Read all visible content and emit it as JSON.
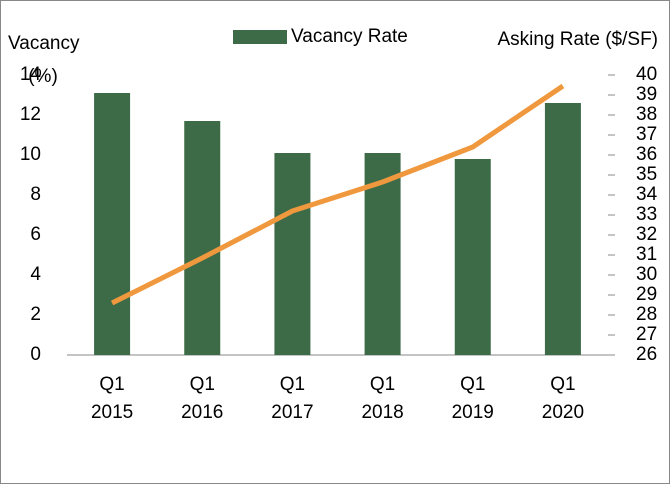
{
  "chart_data": {
    "type": "bar",
    "ylabel": "Vacancy (%)",
    "y2label": "Asking Rate ($/SF)",
    "categories": [
      "Q1 2015",
      "Q1 2016",
      "Q1 2017",
      "Q1 2018",
      "Q1 2019",
      "Q1 2020"
    ],
    "series": [
      {
        "name": "Vacancy Rate",
        "type": "bar",
        "color": "#3d6b47",
        "values": [
          13.1,
          11.7,
          10.1,
          10.1,
          9.8,
          12.6
        ]
      },
      {
        "type": "line",
        "axis": "y2",
        "color": "#f0983e",
        "values": [
          28.6,
          30.85,
          33.2,
          34.65,
          36.4,
          39.45
        ]
      }
    ],
    "ylim": [
      0,
      14
    ],
    "yticks": [
      0,
      2,
      4,
      6,
      8,
      10,
      12,
      14
    ],
    "y2lim": [
      26,
      40
    ],
    "y2ticks": [
      26,
      27,
      28,
      29,
      30,
      31,
      32,
      33,
      34,
      35,
      36,
      37,
      38,
      39,
      40
    ],
    "legend": "top",
    "grid": false
  }
}
